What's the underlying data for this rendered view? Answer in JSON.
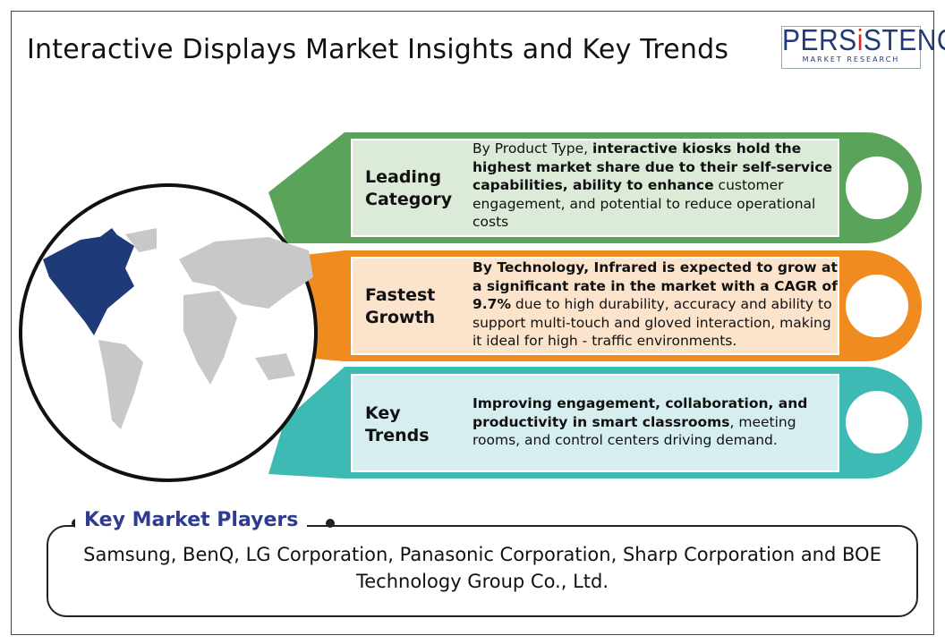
{
  "title": "Interactive Displays Market Insights and Key Trends",
  "logo": {
    "main_a": "PERS",
    "main_i": "i",
    "main_b": "STENCE",
    "sub": "MARKET RESEARCH"
  },
  "colors": {
    "green": "#5aa35a",
    "orange": "#f08b1f",
    "teal": "#3dbab3",
    "navy": "#1e3a78"
  },
  "cards": [
    {
      "label_1": "Leading",
      "label_2": "Category",
      "parts": [
        {
          "t": "By Product Type, ",
          "b": false
        },
        {
          "t": "interactive kiosks hold the highest market share due to their self-service capabilities, ability to enhance",
          "b": true
        },
        {
          "t": " customer engagement, and potential to reduce operational costs",
          "b": false
        }
      ]
    },
    {
      "label_1": "Fastest",
      "label_2": "Growth",
      "parts": [
        {
          "t": "By Technology, Infrared is expected to grow at a significant rate in the market with a CAGR of 9.7%",
          "b": true
        },
        {
          "t": " due to high durability, accuracy and ability to support multi-touch and gloved interaction, making it ideal for high - traffic environments.",
          "b": false
        }
      ]
    },
    {
      "label_1": "Key",
      "label_2": "Trends",
      "parts": [
        {
          "t": "Improving engagement, collaboration, and productivity in smart classrooms",
          "b": true
        },
        {
          "t": ", meeting rooms, and control centers driving demand.",
          "b": false
        }
      ]
    }
  ],
  "players": {
    "title": "Key Market Players",
    "text": "Samsung, BenQ, LG Corporation, Panasonic Corporation, Sharp Corporation and BOE Technology Group Co., Ltd."
  }
}
